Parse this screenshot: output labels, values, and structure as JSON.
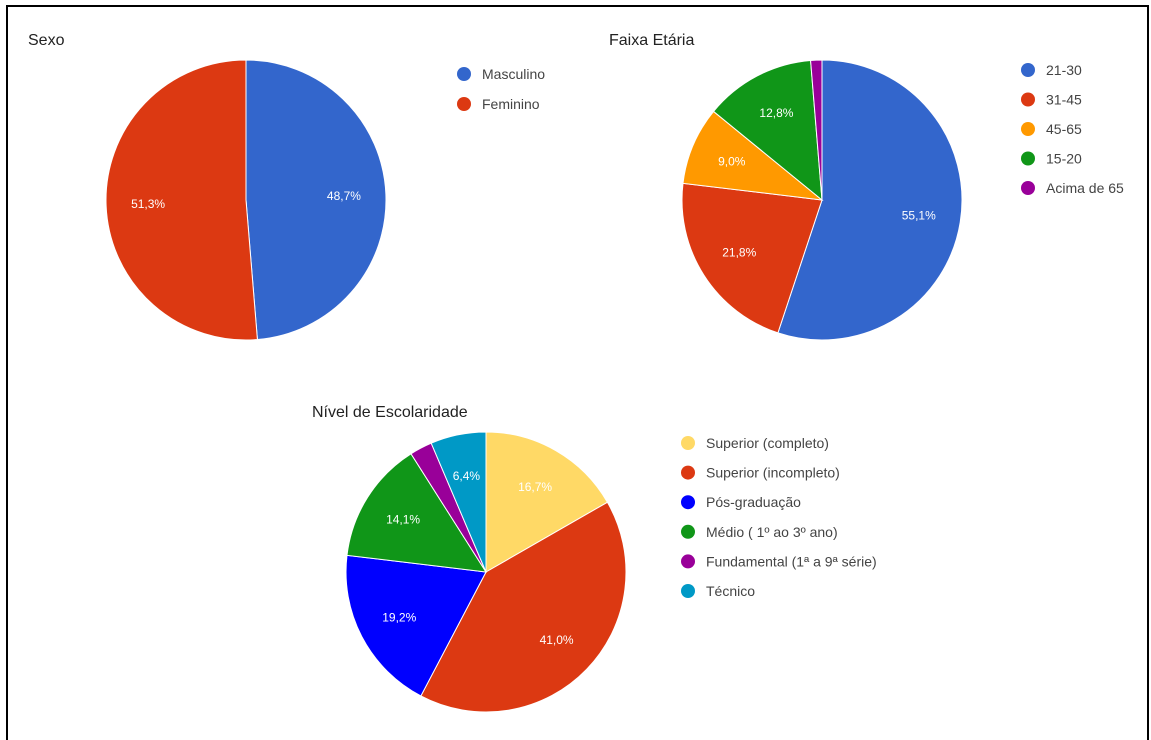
{
  "chart_data": [
    {
      "type": "pie",
      "title": "Sexo",
      "legend_position": "right",
      "slices": [
        {
          "label": "Masculino",
          "value": 48.7,
          "display": "48,7%",
          "color": "#3366cc",
          "label_color": "#ffffff"
        },
        {
          "label": "Feminino",
          "value": 51.3,
          "display": "51,3%",
          "color": "#dc3912",
          "label_color": "#ffffff"
        }
      ]
    },
    {
      "type": "pie",
      "title": "Faixa Etária",
      "legend_position": "right",
      "slices": [
        {
          "label": "21-30",
          "value": 55.1,
          "display": "55,1%",
          "color": "#3366cc",
          "label_color": "#ffffff"
        },
        {
          "label": "31-45",
          "value": 21.8,
          "display": "21,8%",
          "color": "#dc3912",
          "label_color": "#ffffff"
        },
        {
          "label": "45-65",
          "value": 9.0,
          "display": "9,0%",
          "color": "#ff9900",
          "label_color": "#ffffff"
        },
        {
          "label": "15-20",
          "value": 12.8,
          "display": "12,8%",
          "color": "#109618",
          "label_color": "#ffffff"
        },
        {
          "label": "Acima de 65",
          "value": 1.3,
          "display": "",
          "color": "#990099",
          "label_color": "#ffffff"
        }
      ]
    },
    {
      "type": "pie",
      "title": "Nível de Escolaridade",
      "legend_position": "right",
      "slices": [
        {
          "label": "Superior (completo)",
          "value": 16.7,
          "display": "16,7%",
          "color": "#ffd966",
          "label_color": "#333333"
        },
        {
          "label": "Superior (incompleto)",
          "value": 41.0,
          "display": "41,0%",
          "color": "#dc3912",
          "label_color": "#ffffff"
        },
        {
          "label": "Pós-graduação",
          "value": 19.2,
          "display": "19,2%",
          "color": "#0000ff",
          "label_color": "#ffffff"
        },
        {
          "label": "Médio ( 1º ao 3º ano)",
          "value": 14.1,
          "display": "14,1%",
          "color": "#109618",
          "label_color": "#ffffff"
        },
        {
          "label": "Fundamental (1ª a 9ª série)",
          "value": 2.6,
          "display": "",
          "color": "#990099",
          "label_color": "#ffffff"
        },
        {
          "label": "Técnico",
          "value": 6.4,
          "display": "6,4%",
          "color": "#0099c6",
          "label_color": "#ffffff"
        }
      ]
    }
  ]
}
